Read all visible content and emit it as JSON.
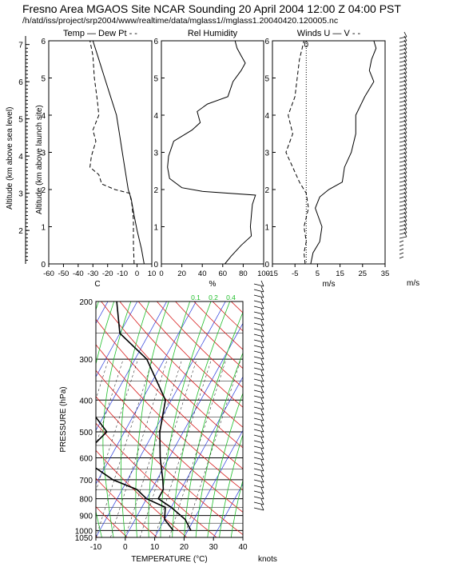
{
  "header": {
    "title": "Fresno Area   MGAOS Site NCAR Sounding 20 April 2004 12:00 Z 04:00 PST",
    "path": "/h/atd/iss/project/srp2004/www/realtime/data/mglass1//mglass1.20040420.120005.nc"
  },
  "axes_left": {
    "outer_label": "Altitude (km above sea level)",
    "inner_label": "Altitude (km above launch site)",
    "asl_ticks": [
      "2",
      "3",
      "4",
      "5",
      "6",
      "7"
    ],
    "agl_ticks": [
      "0",
      "1",
      "2",
      "3",
      "4",
      "5",
      "6"
    ]
  },
  "chart_data": [
    {
      "type": "line",
      "panel": "temperature",
      "title": "Temp — Dew Pt - -",
      "xlabel": "C",
      "xlim": [
        -60,
        10
      ],
      "x_ticks": [
        "-60",
        "-50",
        "-40",
        "-30",
        "-20",
        "-10",
        "0",
        "10"
      ],
      "ylim": [
        0,
        6
      ],
      "series": [
        {
          "name": "Temp",
          "style": "solid",
          "points": [
            [
              4.8,
              0
            ],
            [
              3.0,
              0.4
            ],
            [
              0.0,
              0.9
            ],
            [
              -2.0,
              1.3
            ],
            [
              -4.0,
              1.75
            ],
            [
              -6.0,
              2.0
            ],
            [
              -8.0,
              2.5
            ],
            [
              -10.0,
              3.0
            ],
            [
              -12.0,
              3.5
            ],
            [
              -14.0,
              4.0
            ],
            [
              -18.0,
              4.5
            ],
            [
              -22.0,
              5.0
            ],
            [
              -26.0,
              5.5
            ],
            [
              -30.0,
              6.0
            ]
          ]
        },
        {
          "name": "Dew Pt",
          "style": "dashed",
          "points": [
            [
              -2.0,
              0
            ],
            [
              -2.5,
              0.5
            ],
            [
              -2.5,
              1.2
            ],
            [
              -3.5,
              1.6
            ],
            [
              -5.0,
              1.9
            ],
            [
              -15.0,
              2.0
            ],
            [
              -24.0,
              2.15
            ],
            [
              -26.0,
              2.4
            ],
            [
              -32.0,
              2.6
            ],
            [
              -31.0,
              2.9
            ],
            [
              -28.0,
              3.3
            ],
            [
              -30.0,
              3.6
            ],
            [
              -26.0,
              4.0
            ],
            [
              -27.0,
              4.4
            ],
            [
              -29.0,
              5.0
            ],
            [
              -30.0,
              5.6
            ],
            [
              -32.0,
              6.0
            ]
          ]
        }
      ]
    },
    {
      "type": "line",
      "panel": "humidity",
      "title": "Rel Humidity",
      "xlabel": "%",
      "xlim": [
        0,
        100
      ],
      "x_ticks": [
        "0",
        "20",
        "40",
        "60",
        "80",
        "100"
      ],
      "ylim": [
        0,
        6
      ],
      "series": [
        {
          "name": "RH",
          "style": "solid",
          "points": [
            [
              62,
              0
            ],
            [
              68,
              0.2
            ],
            [
              78,
              0.5
            ],
            [
              88,
              0.75
            ],
            [
              87,
              1.0
            ],
            [
              88,
              1.3
            ],
            [
              89,
              1.6
            ],
            [
              92,
              1.85
            ],
            [
              40,
              1.95
            ],
            [
              20,
              2.05
            ],
            [
              8,
              2.3
            ],
            [
              6,
              2.6
            ],
            [
              7,
              2.9
            ],
            [
              12,
              3.3
            ],
            [
              30,
              3.6
            ],
            [
              38,
              3.8
            ],
            [
              35,
              4.1
            ],
            [
              45,
              4.3
            ],
            [
              65,
              4.5
            ],
            [
              70,
              4.9
            ],
            [
              78,
              5.2
            ],
            [
              82,
              5.4
            ],
            [
              78,
              5.6
            ],
            [
              74,
              5.8
            ],
            [
              72,
              6.0
            ]
          ]
        }
      ]
    },
    {
      "type": "line",
      "panel": "winds",
      "title": "Winds U — V - -",
      "xlabel": "m/s",
      "xlim": [
        -15,
        35
      ],
      "x_ticks": [
        "-15",
        "-5",
        "5",
        "15",
        "25",
        "35"
      ],
      "ylim": [
        0,
        6
      ],
      "zero_label": "0",
      "series": [
        {
          "name": "U",
          "style": "solid",
          "points": [
            [
              2,
              0
            ],
            [
              3,
              0.3
            ],
            [
              6,
              0.6
            ],
            [
              7,
              1.0
            ],
            [
              4,
              1.5
            ],
            [
              6,
              1.8
            ],
            [
              10,
              2.0
            ],
            [
              16,
              2.2
            ],
            [
              17,
              2.6
            ],
            [
              20,
              3.0
            ],
            [
              22,
              3.5
            ],
            [
              22,
              4.0
            ],
            [
              26,
              4.5
            ],
            [
              30,
              4.9
            ],
            [
              28,
              5.2
            ],
            [
              29,
              5.5
            ],
            [
              31,
              5.8
            ],
            [
              30,
              6.0
            ]
          ]
        },
        {
          "name": "V",
          "style": "dashed",
          "points": [
            [
              -0.5,
              0
            ],
            [
              -1,
              0.3
            ],
            [
              0,
              0.6
            ],
            [
              -1,
              1.0
            ],
            [
              1,
              1.5
            ],
            [
              0,
              1.9
            ],
            [
              -3,
              2.2
            ],
            [
              -6,
              2.6
            ],
            [
              -9,
              3.0
            ],
            [
              -6,
              3.5
            ],
            [
              -8,
              4.0
            ],
            [
              -5,
              4.5
            ],
            [
              -4,
              5.0
            ],
            [
              -3,
              5.5
            ],
            [
              -1,
              6.0
            ]
          ]
        }
      ]
    },
    {
      "type": "line",
      "panel": "skewt",
      "xlabel": "TEMPERATURE (°C)",
      "ylabel": "PRESSURE (hPa)",
      "xlim": [
        -10,
        40
      ],
      "x_ticks": [
        "-10",
        "0",
        "10",
        "20",
        "30",
        "40"
      ],
      "p_ticks": [
        "200",
        "300",
        "400",
        "500",
        "600",
        "700",
        "800",
        "900",
        "1000",
        "1050"
      ],
      "mixing_ratio_labels": [
        "0.1",
        "0.2",
        "0.4"
      ],
      "series": [
        {
          "name": "Temp",
          "style": "solid",
          "points": [
            [
              21,
              1000
            ],
            [
              17,
              925
            ],
            [
              10,
              850
            ],
            [
              4,
              800
            ],
            [
              4,
              750
            ],
            [
              2,
              700
            ],
            [
              -3,
              600
            ],
            [
              -8,
              500
            ],
            [
              -12,
              400
            ],
            [
              -26,
              300
            ],
            [
              -40,
              250
            ],
            [
              -47,
              200
            ]
          ]
        },
        {
          "name": "Dew Pt",
          "style": "solid",
          "points": [
            [
              15,
              1000
            ],
            [
              10,
              925
            ],
            [
              8,
              850
            ],
            [
              0,
              800
            ],
            [
              -5,
              750
            ],
            [
              -15,
              700
            ],
            [
              -30,
              600
            ],
            [
              -26,
              500
            ],
            [
              -40,
              400
            ],
            [
              -45,
              300
            ],
            [
              -55,
              250
            ],
            [
              -60,
              200
            ]
          ]
        }
      ]
    }
  ],
  "wind_units": {
    "upper": "m/s",
    "skewt": "knots"
  }
}
